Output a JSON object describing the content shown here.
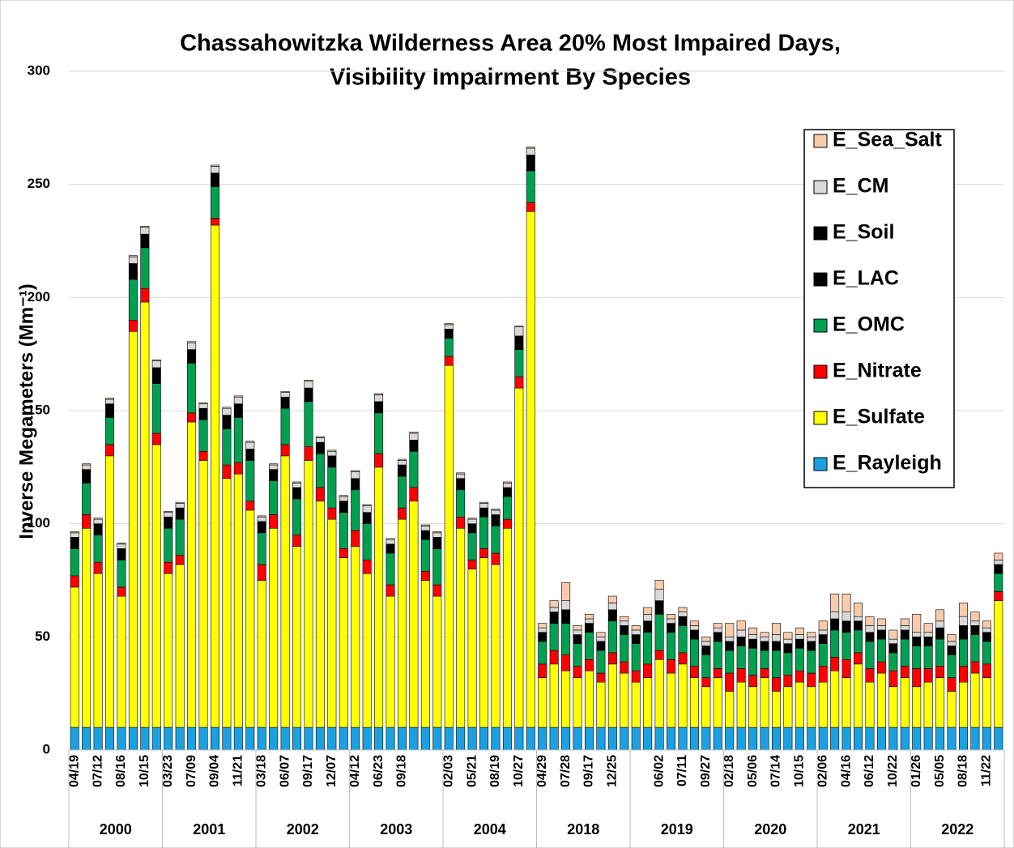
{
  "chart_data": {
    "type": "stacked_bar",
    "title": "Chassahowitzka Wilderness Area 20% Most Impaired Days,",
    "subtitle": "Visibility Impairment By Species",
    "y_label": "Inverse Megameters (Mm⁻¹)",
    "ylim": [
      0,
      300
    ],
    "yticks": [
      0,
      50,
      100,
      150,
      200,
      250,
      300
    ],
    "grid": true,
    "legend": "upper right",
    "years": [
      "2000",
      "2001",
      "2002",
      "2003",
      "2004",
      "2018",
      "2019",
      "2020",
      "2021",
      "2022"
    ],
    "categories": [
      "04/19",
      null,
      "07/12",
      null,
      "08/16",
      null,
      "10/15",
      null,
      "03/23",
      null,
      "07/09",
      null,
      "09/04",
      null,
      "11/21",
      null,
      "03/18",
      null,
      "06/07",
      null,
      "09/17",
      null,
      "12/07",
      null,
      "04/12",
      null,
      "06/23",
      null,
      "09/18",
      null,
      null,
      null,
      "02/03",
      null,
      "05/21",
      null,
      "08/19",
      null,
      "10/27",
      null,
      "04/29",
      null,
      "07/28",
      null,
      "09/17",
      null,
      "12/25",
      null,
      null,
      null,
      "06/02",
      null,
      "07/11",
      null,
      "09/27",
      null,
      "02/18",
      null,
      "05/06",
      null,
      "07/14",
      null,
      "10/15",
      null,
      "02/06",
      null,
      "04/16",
      null,
      "06/12",
      null,
      "10/22",
      null,
      "01/26",
      null,
      "05/05",
      null,
      "08/18",
      null,
      "11/22",
      null
    ],
    "series": [
      {
        "name": "E_Rayleigh",
        "color": "#1ba1e2",
        "values": [
          10,
          10,
          10,
          10,
          10,
          10,
          10,
          10,
          10,
          10,
          10,
          10,
          10,
          10,
          10,
          10,
          10,
          10,
          10,
          10,
          10,
          10,
          10,
          10,
          10,
          10,
          10,
          10,
          10,
          10,
          10,
          10,
          10,
          10,
          10,
          10,
          10,
          10,
          10,
          10,
          10,
          10,
          10,
          10,
          10,
          10,
          10,
          10,
          10,
          10,
          10,
          10,
          10,
          10,
          10,
          10,
          10,
          10,
          10,
          10,
          10,
          10,
          10,
          10,
          10,
          10,
          10,
          10,
          10,
          10,
          10,
          10,
          10,
          10,
          10,
          10,
          10,
          10,
          10,
          10
        ]
      },
      {
        "name": "E_Sulfate",
        "color": "#ffff00",
        "values": [
          62,
          88,
          68,
          120,
          58,
          175,
          188,
          125,
          68,
          72,
          135,
          118,
          222,
          110,
          112,
          96,
          65,
          88,
          120,
          80,
          118,
          100,
          92,
          75,
          80,
          68,
          115,
          58,
          92,
          100,
          65,
          58,
          160,
          88,
          70,
          75,
          72,
          88,
          150,
          228,
          22,
          28,
          25,
          22,
          25,
          20,
          28,
          24,
          20,
          22,
          30,
          24,
          28,
          22,
          18,
          22,
          16,
          20,
          18,
          22,
          16,
          18,
          20,
          18,
          20,
          25,
          22,
          28,
          20,
          24,
          18,
          22,
          18,
          20,
          22,
          16,
          20,
          24,
          22,
          56
        ]
      },
      {
        "name": "E_Nitrate",
        "color": "#ff0000",
        "values": [
          5,
          6,
          5,
          5,
          4,
          5,
          6,
          5,
          5,
          4,
          4,
          4,
          3,
          6,
          5,
          4,
          7,
          6,
          5,
          5,
          6,
          6,
          5,
          4,
          7,
          6,
          6,
          5,
          5,
          6,
          4,
          5,
          4,
          5,
          4,
          4,
          5,
          4,
          5,
          4,
          6,
          6,
          7,
          5,
          5,
          4,
          5,
          5,
          5,
          6,
          4,
          6,
          5,
          5,
          4,
          4,
          8,
          6,
          5,
          4,
          6,
          5,
          5,
          6,
          7,
          6,
          8,
          5,
          6,
          5,
          7,
          5,
          8,
          6,
          5,
          6,
          7,
          5,
          6,
          4
        ]
      },
      {
        "name": "E_OMC",
        "color": "#00a050",
        "values": [
          12,
          14,
          12,
          12,
          12,
          18,
          18,
          22,
          15,
          16,
          22,
          14,
          14,
          16,
          20,
          18,
          14,
          15,
          16,
          16,
          20,
          15,
          18,
          16,
          18,
          16,
          18,
          14,
          14,
          16,
          14,
          16,
          8,
          12,
          12,
          14,
          12,
          10,
          12,
          14,
          10,
          12,
          14,
          10,
          12,
          10,
          14,
          12,
          12,
          14,
          16,
          12,
          12,
          12,
          10,
          12,
          10,
          10,
          12,
          8,
          12,
          10,
          10,
          10,
          10,
          12,
          12,
          10,
          12,
          10,
          8,
          12,
          10,
          10,
          12,
          10,
          12,
          12,
          10,
          8
        ]
      },
      {
        "name": "E_LAC",
        "color": "#000000",
        "values": [
          4,
          5,
          4,
          5,
          4,
          6,
          5,
          6,
          4,
          4,
          5,
          4,
          5,
          5,
          5,
          4,
          4,
          4,
          4,
          4,
          5,
          4,
          4,
          4,
          4,
          4,
          4,
          3,
          4,
          4,
          3,
          4,
          3,
          4,
          3,
          3,
          4,
          3,
          5,
          6,
          3,
          4,
          5,
          3,
          3,
          3,
          4,
          3,
          3,
          4,
          5,
          3,
          3,
          3,
          3,
          3,
          3,
          3,
          3,
          3,
          3,
          3,
          3,
          3,
          3,
          4,
          4,
          3,
          3,
          3,
          3,
          3,
          3,
          3,
          4,
          3,
          5,
          3,
          3,
          3
        ]
      },
      {
        "name": "E_Soil",
        "color": "#000000",
        "values": [
          1,
          1,
          1,
          1,
          1,
          1,
          1,
          1,
          1,
          1,
          1,
          1,
          1,
          1,
          1,
          1,
          1,
          1,
          1,
          1,
          1,
          1,
          1,
          1,
          1,
          1,
          1,
          1,
          1,
          1,
          1,
          1,
          1,
          1,
          1,
          1,
          1,
          1,
          1,
          1,
          1,
          1,
          1,
          1,
          1,
          1,
          1,
          1,
          1,
          1,
          1,
          1,
          1,
          1,
          1,
          1,
          1,
          1,
          1,
          1,
          1,
          1,
          1,
          1,
          1,
          1,
          1,
          1,
          1,
          1,
          1,
          1,
          1,
          1,
          1,
          1,
          1,
          1,
          1,
          1
        ]
      },
      {
        "name": "E_CM",
        "color": "#d9d9d9",
        "values": [
          2,
          2,
          2,
          2,
          2,
          3,
          3,
          3,
          2,
          2,
          3,
          2,
          3,
          3,
          3,
          3,
          2,
          2,
          2,
          2,
          3,
          2,
          2,
          2,
          3,
          3,
          3,
          2,
          2,
          3,
          2,
          2,
          2,
          2,
          2,
          2,
          2,
          2,
          4,
          3,
          2,
          2,
          4,
          2,
          2,
          2,
          3,
          2,
          2,
          3,
          5,
          2,
          2,
          2,
          2,
          2,
          2,
          3,
          2,
          2,
          3,
          2,
          2,
          2,
          2,
          3,
          4,
          2,
          3,
          2,
          2,
          2,
          2,
          2,
          3,
          2,
          4,
          2,
          2,
          2
        ]
      },
      {
        "name": "E_Sea_Salt",
        "color": "#f8cbad",
        "values": [
          0.5,
          0.5,
          0.5,
          0.5,
          0.5,
          0.5,
          0.5,
          0.5,
          0.5,
          0.5,
          0.5,
          0.5,
          0.5,
          0.5,
          0.5,
          0.5,
          0.5,
          0.5,
          0.5,
          0.5,
          0.5,
          0.5,
          0.5,
          0.5,
          0.5,
          0.5,
          0.5,
          0.5,
          0.5,
          0.5,
          0.5,
          0.5,
          0.5,
          0.5,
          0.5,
          0.5,
          0.5,
          0.5,
          0.5,
          0.5,
          2,
          3,
          8,
          2,
          2,
          2,
          3,
          2,
          2,
          3,
          4,
          2,
          2,
          2,
          2,
          2,
          6,
          4,
          3,
          2,
          5,
          3,
          3,
          2,
          4,
          8,
          8,
          6,
          4,
          3,
          4,
          3,
          8,
          4,
          5,
          3,
          6,
          4,
          3,
          3
        ]
      }
    ]
  }
}
